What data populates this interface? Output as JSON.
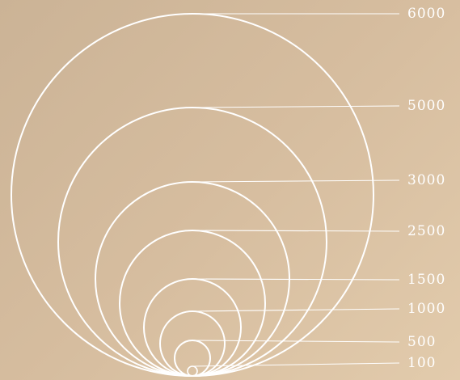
{
  "chart_data": {
    "type": "diagram",
    "stroke_color": "#ffffff",
    "background_gradient": [
      "#cbb396",
      "#e2cbac"
    ],
    "circles": [
      {
        "label": "6000"
      },
      {
        "label": "5000"
      },
      {
        "label": "3000"
      },
      {
        "label": "2500"
      },
      {
        "label": "1500"
      },
      {
        "label": "1000"
      },
      {
        "label": "500"
      },
      {
        "label": "100"
      }
    ]
  }
}
